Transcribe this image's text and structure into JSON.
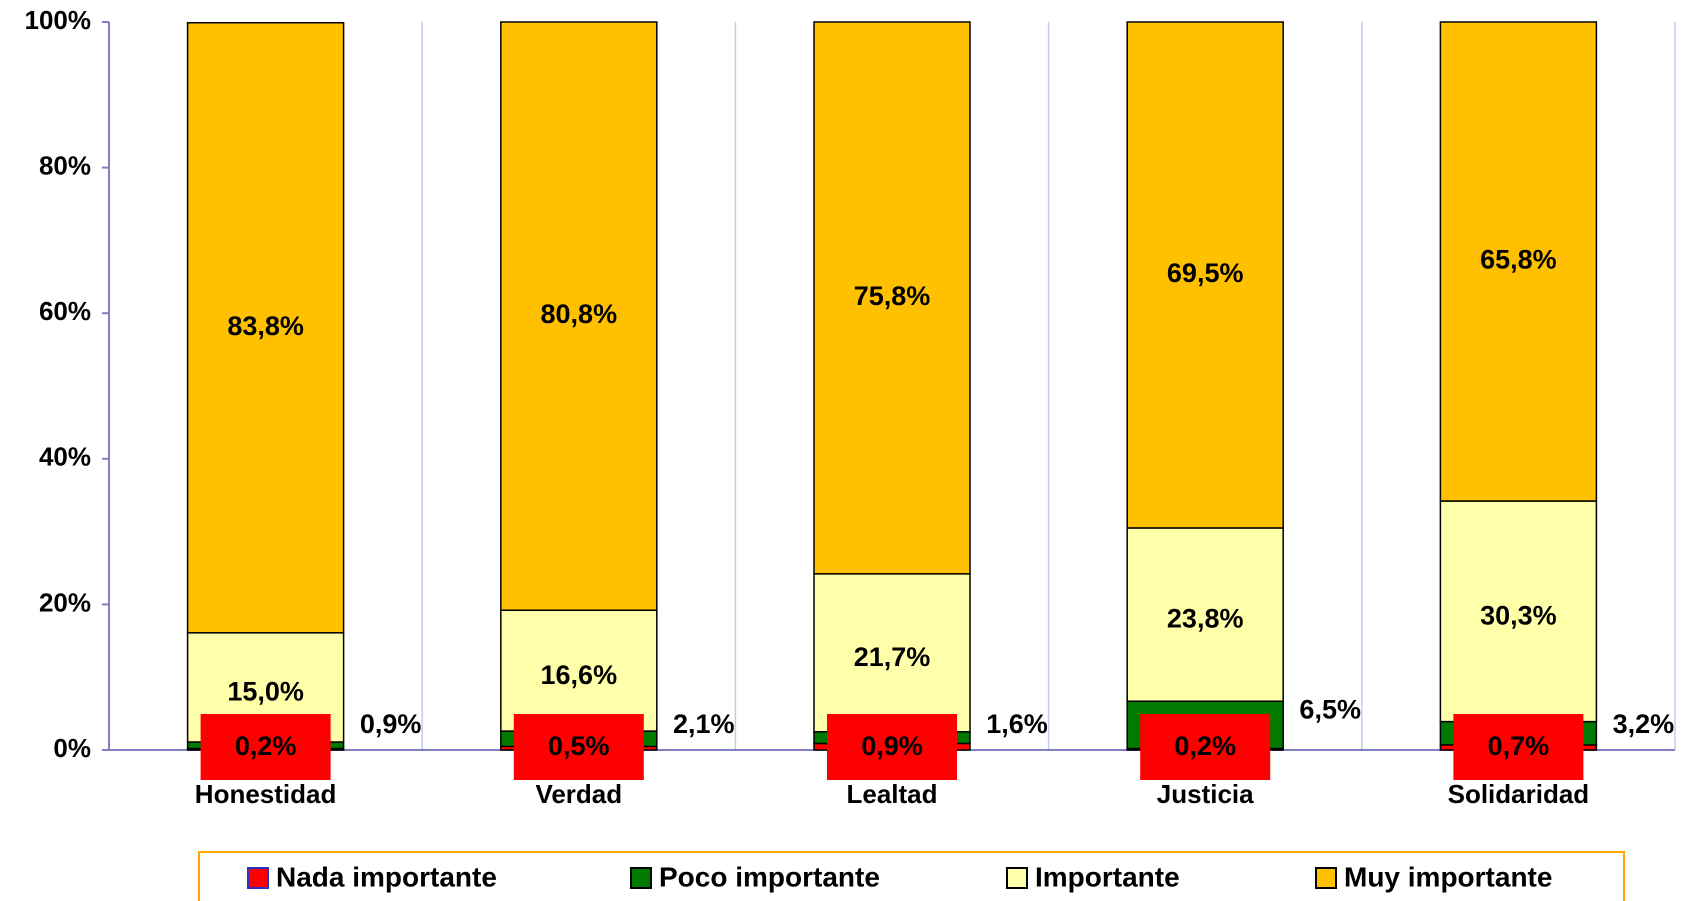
{
  "chart_data": {
    "type": "stacked-bar",
    "categories": [
      "Honestidad",
      "Verdad",
      "Lealtad",
      "Justicia",
      "Solidaridad"
    ],
    "series": [
      {
        "name": "Nada importante",
        "color": "#ff0000",
        "values": [
          0.2,
          0.5,
          0.9,
          0.2,
          0.7
        ],
        "value_labels": [
          "0,2%",
          "0,5%",
          "0,9%",
          "0,2%",
          "0,7%"
        ]
      },
      {
        "name": "Poco importante",
        "color": "#007a00",
        "values": [
          0.9,
          2.1,
          1.6,
          6.5,
          3.2
        ],
        "value_labels": [
          "0,9%",
          "2,1%",
          "1,6%",
          "6,5%",
          "3,2%"
        ]
      },
      {
        "name": "Importante",
        "color": "#ffffaa",
        "values": [
          15.0,
          16.6,
          21.7,
          23.8,
          30.3
        ],
        "value_labels": [
          "15,0%",
          "16,6%",
          "21,7%",
          "23,8%",
          "30,3%"
        ]
      },
      {
        "name": "Muy importante",
        "color": "#ffc000",
        "values": [
          83.8,
          80.8,
          75.8,
          69.5,
          65.8
        ],
        "value_labels": [
          "83,8%",
          "80,8%",
          "75,8%",
          "69,5%",
          "65,8%"
        ]
      }
    ],
    "ylim": [
      0,
      100
    ],
    "yticks": [
      {
        "value": 0,
        "label": "0%"
      },
      {
        "value": 20,
        "label": "20%"
      },
      {
        "value": 40,
        "label": "40%"
      },
      {
        "value": 60,
        "label": "60%"
      },
      {
        "value": 80,
        "label": "80%"
      },
      {
        "value": 100,
        "label": "100%"
      }
    ],
    "legend": "bottom"
  }
}
